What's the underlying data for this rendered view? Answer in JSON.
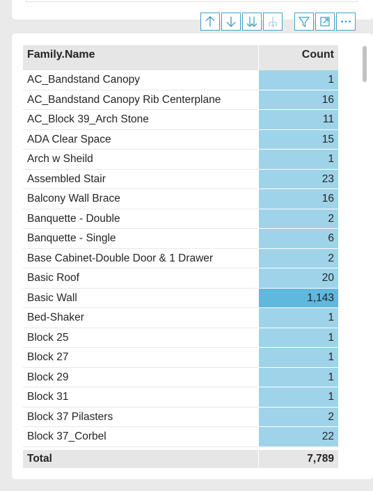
{
  "toolbar": {
    "buttons": [
      {
        "name": "drill-up-button",
        "icon": "arrow-up-icon"
      },
      {
        "name": "drill-down-button",
        "icon": "arrow-down-icon"
      },
      {
        "name": "expand-all-down-button",
        "icon": "double-arrow-down-icon"
      },
      {
        "name": "expand-hierarchy-button",
        "icon": "fork-down-icon"
      },
      {
        "name": "filter-button",
        "icon": "filter-icon"
      },
      {
        "name": "focus-mode-button",
        "icon": "focus-icon"
      },
      {
        "name": "more-options-button",
        "icon": "ellipsis-icon"
      }
    ],
    "accent": "#3fa1c8"
  },
  "table": {
    "columns": {
      "name": "Family.Name",
      "count": "Count"
    },
    "rows": [
      {
        "name": "AC_Bandstand Canopy",
        "count": "1"
      },
      {
        "name": "AC_Bandstand Canopy Rib Centerplane",
        "count": "16"
      },
      {
        "name": "AC_Block 39_Arch Stone",
        "count": "11"
      },
      {
        "name": "ADA Clear Space",
        "count": "15"
      },
      {
        "name": "Arch w Sheild",
        "count": "1"
      },
      {
        "name": "Assembled Stair",
        "count": "23"
      },
      {
        "name": "Balcony Wall Brace",
        "count": "16"
      },
      {
        "name": "Banquette - Double",
        "count": "2"
      },
      {
        "name": "Banquette - Single",
        "count": "6"
      },
      {
        "name": "Base Cabinet-Double Door & 1 Drawer",
        "count": "2"
      },
      {
        "name": "Basic Roof",
        "count": "20"
      },
      {
        "name": "Basic Wall",
        "count": "1,143",
        "highlight": true
      },
      {
        "name": "Bed-Shaker",
        "count": "1"
      },
      {
        "name": "Block 25",
        "count": "1"
      },
      {
        "name": "Block 27",
        "count": "1"
      },
      {
        "name": "Block 29",
        "count": "1"
      },
      {
        "name": "Block 31",
        "count": "1"
      },
      {
        "name": "Block 37 Pilasters",
        "count": "2"
      },
      {
        "name": "Block 37_Corbel",
        "count": "22"
      }
    ],
    "total": {
      "label": "Total",
      "count": "7,789"
    },
    "bar_color": "#9fd3ea",
    "bar_highlight_color": "#5fb8de"
  }
}
